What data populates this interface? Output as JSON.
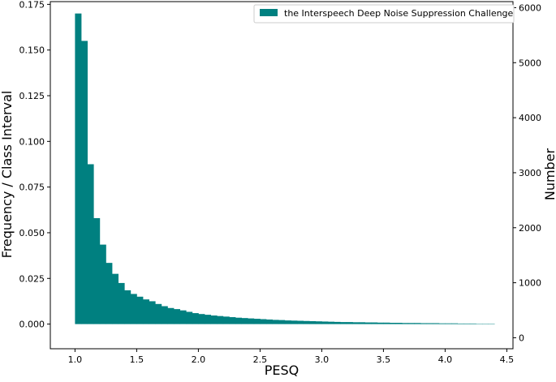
{
  "chart_data": {
    "type": "bar",
    "subtype": "histogram",
    "xlabel": "PESQ",
    "ylabel": "Frequency / Class Interval",
    "ylabel_right": "Number",
    "legend": {
      "label": "the Interspeech Deep Noise Suppression Challenge",
      "placement": "top-right"
    },
    "xlim": [
      0.8,
      4.55
    ],
    "ylim": [
      -0.0135,
      0.1765
    ],
    "ylim_right": [
      -200,
      6110
    ],
    "x_ticks": [
      1.0,
      1.5,
      2.0,
      2.5,
      3.0,
      3.5,
      4.0,
      4.5
    ],
    "x_tick_labels": [
      "1.0",
      "1.5",
      "2.0",
      "2.5",
      "3.0",
      "3.5",
      "4.0",
      "4.5"
    ],
    "y_ticks": [
      0.0,
      0.025,
      0.05,
      0.075,
      0.1,
      0.125,
      0.15,
      0.175
    ],
    "y_tick_labels": [
      "0.000",
      "0.025",
      "0.050",
      "0.075",
      "0.100",
      "0.125",
      "0.150",
      "0.175"
    ],
    "y_ticks_right": [
      0,
      1000,
      2000,
      3000,
      4000,
      5000,
      6000
    ],
    "y_tick_labels_right": [
      "0",
      "1000",
      "2000",
      "3000",
      "4000",
      "5000",
      "6000"
    ],
    "bin_start": 1.0,
    "bin_width": 0.05,
    "values": [
      0.17,
      0.155,
      0.0875,
      0.058,
      0.0435,
      0.0335,
      0.0275,
      0.0225,
      0.0185,
      0.0165,
      0.015,
      0.0135,
      0.0125,
      0.011,
      0.0098,
      0.0088,
      0.0082,
      0.0075,
      0.0067,
      0.006,
      0.0055,
      0.0051,
      0.0047,
      0.0044,
      0.0041,
      0.0038,
      0.0035,
      0.0033,
      0.0031,
      0.0029,
      0.0027,
      0.0025,
      0.0023,
      0.0022,
      0.002,
      0.0019,
      0.0018,
      0.0017,
      0.0016,
      0.0015,
      0.0014,
      0.0013,
      0.0012,
      0.0011,
      0.0011,
      0.001,
      0.001,
      0.0009,
      0.0009,
      0.0008,
      0.0008,
      0.0007,
      0.0007,
      0.0006,
      0.0006,
      0.0006,
      0.0005,
      0.0005,
      0.0005,
      0.0004,
      0.0004,
      0.0004,
      0.0003,
      0.0003,
      0.0003,
      0.0002,
      0.0002,
      0.0002
    ],
    "grid": false,
    "colors": {
      "bars": "#008080",
      "axes": "#000000",
      "background": "#ffffff"
    }
  }
}
